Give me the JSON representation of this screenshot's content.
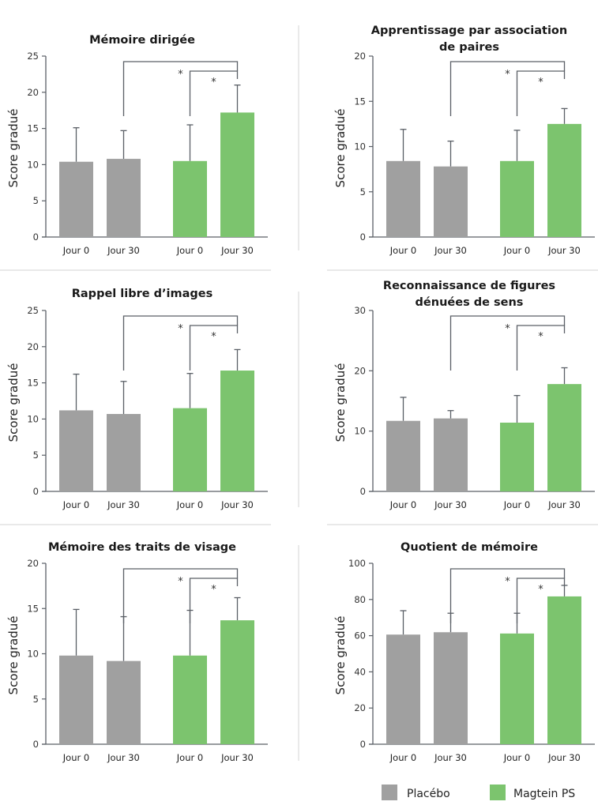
{
  "legend": {
    "items": [
      {
        "label": "Placébo",
        "color": "#a0a0a0"
      },
      {
        "label": "Magtein PS",
        "color": "#7cc46e"
      }
    ]
  },
  "chart_data": [
    {
      "type": "bar",
      "title": [
        "Mémoire dirigée"
      ],
      "ylabel": "Score gradué",
      "categories": [
        "Jour 0",
        "Jour 30",
        "Jour 0",
        "Jour 30"
      ],
      "groups": [
        "Placébo",
        "Placébo",
        "Magtein PS",
        "Magtein PS"
      ],
      "values": [
        10.4,
        10.8,
        10.5,
        17.2
      ],
      "error_upper": [
        15.1,
        14.7,
        15.5,
        21.0
      ],
      "ylim": [
        0,
        25
      ],
      "yticks": [
        0,
        5,
        10,
        15,
        20,
        25
      ],
      "significance": [
        {
          "from": 1,
          "to": 3,
          "label": "*"
        },
        {
          "from": 2,
          "to": 3,
          "label": "*"
        }
      ]
    },
    {
      "type": "bar",
      "title": [
        "Apprentissage par association",
        "de paires"
      ],
      "ylabel": "Score gradué",
      "categories": [
        "Jour 0",
        "Jour 30",
        "Jour 0",
        "Jour 30"
      ],
      "groups": [
        "Placébo",
        "Placébo",
        "Magtein PS",
        "Magtein PS"
      ],
      "values": [
        8.4,
        7.8,
        8.4,
        12.5
      ],
      "error_upper": [
        11.9,
        10.6,
        11.8,
        14.2
      ],
      "ylim": [
        0,
        20
      ],
      "yticks": [
        0,
        5,
        10,
        15,
        20
      ],
      "significance": [
        {
          "from": 1,
          "to": 3,
          "label": "*"
        },
        {
          "from": 2,
          "to": 3,
          "label": "*"
        }
      ]
    },
    {
      "type": "bar",
      "title": [
        "Rappel libre d’images"
      ],
      "ylabel": "Score gradué",
      "categories": [
        "Jour 0",
        "Jour 30",
        "Jour 0",
        "Jour 30"
      ],
      "groups": [
        "Placébo",
        "Placébo",
        "Magtein PS",
        "Magtein PS"
      ],
      "values": [
        11.2,
        10.7,
        11.5,
        16.7
      ],
      "error_upper": [
        16.2,
        15.2,
        16.3,
        19.6
      ],
      "ylim": [
        0,
        25
      ],
      "yticks": [
        0,
        5,
        10,
        15,
        20,
        25
      ],
      "significance": [
        {
          "from": 1,
          "to": 3,
          "label": "*"
        },
        {
          "from": 2,
          "to": 3,
          "label": "*"
        }
      ]
    },
    {
      "type": "bar",
      "title": [
        "Reconnaissance de figures",
        "dénuées de sens"
      ],
      "ylabel": "Score gradué",
      "categories": [
        "Jour 0",
        "Jour 30",
        "Jour 0",
        "Jour 30"
      ],
      "groups": [
        "Placébo",
        "Placébo",
        "Magtein PS",
        "Magtein PS"
      ],
      "values": [
        11.7,
        12.1,
        11.4,
        17.8
      ],
      "error_upper": [
        15.6,
        13.4,
        15.9,
        20.5
      ],
      "ylim": [
        0,
        30
      ],
      "yticks": [
        0,
        10,
        20,
        30
      ],
      "significance": [
        {
          "from": 1,
          "to": 3,
          "label": "*"
        },
        {
          "from": 2,
          "to": 3,
          "label": "*"
        }
      ]
    },
    {
      "type": "bar",
      "title": [
        "Mémoire des traits de visage"
      ],
      "ylabel": "Score gradué",
      "categories": [
        "Jour 0",
        "Jour 30",
        "Jour 0",
        "Jour 30"
      ],
      "groups": [
        "Placébo",
        "Placébo",
        "Magtein PS",
        "Magtein PS"
      ],
      "values": [
        9.8,
        9.2,
        9.8,
        13.7
      ],
      "error_upper": [
        14.9,
        14.1,
        14.8,
        16.2
      ],
      "ylim": [
        0,
        20
      ],
      "yticks": [
        0,
        5,
        10,
        15,
        20
      ],
      "significance": [
        {
          "from": 1,
          "to": 3,
          "label": "*"
        },
        {
          "from": 2,
          "to": 3,
          "label": "*"
        }
      ]
    },
    {
      "type": "bar",
      "title": [
        "Quotient de mémoire"
      ],
      "ylabel": "Score gradué",
      "categories": [
        "Jour 0",
        "Jour 30",
        "Jour 0",
        "Jour 30"
      ],
      "groups": [
        "Placébo",
        "Placébo",
        "Magtein PS",
        "Magtein PS"
      ],
      "values": [
        60.6,
        61.9,
        61.2,
        81.7
      ],
      "error_upper": [
        73.8,
        72.4,
        72.4,
        87.8
      ],
      "ylim": [
        0,
        100
      ],
      "yticks": [
        0,
        20,
        40,
        60,
        80,
        100
      ],
      "significance": [
        {
          "from": 1,
          "to": 3,
          "label": "*"
        },
        {
          "from": 2,
          "to": 3,
          "label": "*"
        }
      ]
    }
  ]
}
